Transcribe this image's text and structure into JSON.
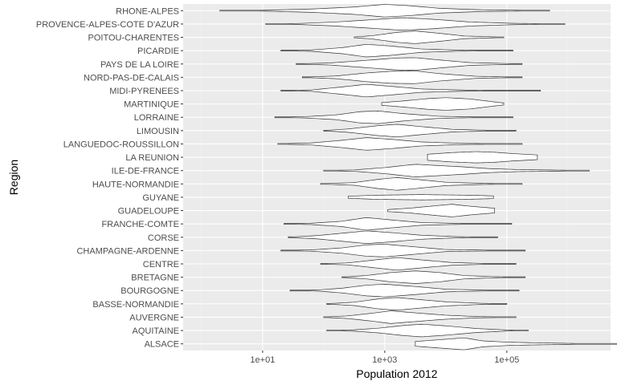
{
  "chart_data": {
    "type": "violin",
    "orientation": "horizontal",
    "xlabel": "Population 2012",
    "ylabel": "Region",
    "x_scale": "log10",
    "xlim": [
      0.5,
      5000000
    ],
    "x_ticks": [
      10,
      1000,
      100000
    ],
    "x_tick_labels": [
      "1e+01",
      "1e+03",
      "1e+05"
    ],
    "grid": true,
    "legend": "none",
    "colors": {
      "panel_bg": "#ebebeb",
      "grid_major": "#ffffff",
      "grid_minor": "#f4f4f4",
      "violin_fill": "#ffffff",
      "violin_stroke": "#333333",
      "axis_text": "#4d4d4d",
      "title_text": "#000000"
    },
    "categories": [
      "ALSACE",
      "AQUITAINE",
      "AUVERGNE",
      "BASSE-NORMANDIE",
      "BOURGOGNE",
      "BRETAGNE",
      "CENTRE",
      "CHAMPAGNE-ARDENNE",
      "CORSE",
      "FRANCHE-COMTE",
      "GUADELOUPE",
      "GUYANE",
      "HAUTE-NORMANDIE",
      "ILE-DE-FRANCE",
      "LA REUNION",
      "LANGUEDOC-ROUSSILLON",
      "LIMOUSIN",
      "LORRAINE",
      "MARTINIQUE",
      "MIDI-PYRENEES",
      "NORD-PAS-DE-CALAIS",
      "PAYS DE LA LOIRE",
      "PICARDIE",
      "POITOU-CHARENTES",
      "PROVENCE-ALPES-COTE D'AZUR",
      "RHONE-ALPES"
    ],
    "series": [
      {
        "min": 3.5,
        "max": 7,
        "prof": [
          [
            3.5,
            0.35
          ],
          [
            4.3,
            0.9
          ],
          [
            4.6,
            0.45
          ],
          [
            5,
            0.25
          ],
          [
            5.5,
            0.15
          ],
          [
            6.2,
            0.05
          ],
          [
            7,
            0.02
          ]
        ]
      },
      {
        "min": 2.05,
        "max": 5.35,
        "prof": [
          [
            2.05,
            0.02
          ],
          [
            2.5,
            0.1
          ],
          [
            2.9,
            0.35
          ],
          [
            3.3,
            0.75
          ],
          [
            3.6,
            0.95
          ],
          [
            4,
            0.7
          ],
          [
            4.5,
            0.3
          ],
          [
            5,
            0.08
          ],
          [
            5.35,
            0.02
          ]
        ]
      },
      {
        "min": 2.0,
        "max": 5.15,
        "prof": [
          [
            2,
            0.02
          ],
          [
            2.4,
            0.2
          ],
          [
            2.8,
            0.6
          ],
          [
            3.1,
            0.95
          ],
          [
            3.5,
            0.65
          ],
          [
            4,
            0.3
          ],
          [
            4.5,
            0.1
          ],
          [
            5.15,
            0.02
          ]
        ]
      },
      {
        "min": 2.05,
        "max": 5.0,
        "prof": [
          [
            2.05,
            0.02
          ],
          [
            2.5,
            0.25
          ],
          [
            2.9,
            0.75
          ],
          [
            3.2,
            0.95
          ],
          [
            3.5,
            0.7
          ],
          [
            4,
            0.3
          ],
          [
            4.6,
            0.08
          ],
          [
            5,
            0.02
          ]
        ]
      },
      {
        "min": 1.45,
        "max": 5.2,
        "prof": [
          [
            1.45,
            0.02
          ],
          [
            1.9,
            0.08
          ],
          [
            2.3,
            0.35
          ],
          [
            2.7,
            0.8
          ],
          [
            3.0,
            0.95
          ],
          [
            3.5,
            0.6
          ],
          [
            4,
            0.2
          ],
          [
            4.7,
            0.05
          ],
          [
            5.2,
            0.02
          ]
        ]
      },
      {
        "min": 2.3,
        "max": 5.3,
        "prof": [
          [
            2.3,
            0.02
          ],
          [
            2.7,
            0.25
          ],
          [
            3.1,
            0.7
          ],
          [
            3.5,
            0.95
          ],
          [
            3.9,
            0.7
          ],
          [
            4.3,
            0.25
          ],
          [
            4.8,
            0.08
          ],
          [
            5.3,
            0.02
          ]
        ]
      },
      {
        "min": 1.95,
        "max": 5.15,
        "prof": [
          [
            1.95,
            0.02
          ],
          [
            2.4,
            0.15
          ],
          [
            2.8,
            0.55
          ],
          [
            3.2,
            0.95
          ],
          [
            3.6,
            0.6
          ],
          [
            4.1,
            0.2
          ],
          [
            4.7,
            0.05
          ],
          [
            5.15,
            0.02
          ]
        ]
      },
      {
        "min": 1.3,
        "max": 5.3,
        "prof": [
          [
            1.3,
            0.02
          ],
          [
            1.8,
            0.1
          ],
          [
            2.3,
            0.4
          ],
          [
            2.7,
            0.85
          ],
          [
            3.0,
            0.95
          ],
          [
            3.5,
            0.55
          ],
          [
            4,
            0.15
          ],
          [
            4.8,
            0.05
          ],
          [
            5.3,
            0.02
          ]
        ]
      },
      {
        "min": 1.42,
        "max": 4.85,
        "prof": [
          [
            1.42,
            0.02
          ],
          [
            1.9,
            0.25
          ],
          [
            2.3,
            0.6
          ],
          [
            2.7,
            0.95
          ],
          [
            3.1,
            0.7
          ],
          [
            3.6,
            0.3
          ],
          [
            4.2,
            0.08
          ],
          [
            4.85,
            0.02
          ]
        ]
      },
      {
        "min": 1.35,
        "max": 5.08,
        "prof": [
          [
            1.35,
            0.02
          ],
          [
            1.8,
            0.1
          ],
          [
            2.3,
            0.4
          ],
          [
            2.7,
            0.95
          ],
          [
            3.1,
            0.6
          ],
          [
            3.6,
            0.2
          ],
          [
            4.3,
            0.05
          ],
          [
            5.08,
            0.02
          ]
        ]
      },
      {
        "min": 3.05,
        "max": 4.8,
        "prof": [
          [
            3.05,
            0.15
          ],
          [
            3.4,
            0.35
          ],
          [
            3.8,
            0.7
          ],
          [
            4.1,
            0.95
          ],
          [
            4.4,
            0.65
          ],
          [
            4.8,
            0.35
          ]
        ]
      },
      {
        "min": 2.4,
        "max": 4.78,
        "prof": [
          [
            2.4,
            0.15
          ],
          [
            2.8,
            0.3
          ],
          [
            3.2,
            0.35
          ],
          [
            3.6,
            0.4
          ],
          [
            4,
            0.35
          ],
          [
            4.4,
            0.3
          ],
          [
            4.78,
            0.2
          ]
        ]
      },
      {
        "min": 1.95,
        "max": 5.25,
        "prof": [
          [
            1.95,
            0.02
          ],
          [
            2.5,
            0.2
          ],
          [
            2.9,
            0.7
          ],
          [
            3.2,
            0.95
          ],
          [
            3.5,
            0.7
          ],
          [
            4,
            0.25
          ],
          [
            4.6,
            0.08
          ],
          [
            5.25,
            0.02
          ]
        ]
      },
      {
        "min": 2.0,
        "max": 6.35,
        "prof": [
          [
            2,
            0.02
          ],
          [
            2.5,
            0.1
          ],
          [
            3,
            0.45
          ],
          [
            3.5,
            0.95
          ],
          [
            3.9,
            0.75
          ],
          [
            4.3,
            0.55
          ],
          [
            4.7,
            0.3
          ],
          [
            5.2,
            0.15
          ],
          [
            6.35,
            0.02
          ]
        ]
      },
      {
        "min": 3.7,
        "max": 5.5,
        "prof": [
          [
            3.7,
            0.45
          ],
          [
            4.1,
            0.7
          ],
          [
            4.5,
            0.85
          ],
          [
            4.8,
            0.75
          ],
          [
            5.1,
            0.55
          ],
          [
            5.5,
            0.35
          ]
        ]
      },
      {
        "min": 1.25,
        "max": 5.25,
        "prof": [
          [
            1.25,
            0.02
          ],
          [
            1.8,
            0.15
          ],
          [
            2.3,
            0.55
          ],
          [
            2.7,
            0.95
          ],
          [
            3.1,
            0.7
          ],
          [
            3.6,
            0.3
          ],
          [
            4.3,
            0.08
          ],
          [
            5.25,
            0.02
          ]
        ]
      },
      {
        "min": 2.0,
        "max": 5.15,
        "prof": [
          [
            2,
            0.02
          ],
          [
            2.4,
            0.25
          ],
          [
            2.9,
            0.75
          ],
          [
            3.2,
            0.95
          ],
          [
            3.6,
            0.6
          ],
          [
            4.1,
            0.2
          ],
          [
            4.7,
            0.05
          ],
          [
            5.15,
            0.02
          ]
        ]
      },
      {
        "min": 1.2,
        "max": 5.1,
        "prof": [
          [
            1.2,
            0.02
          ],
          [
            1.7,
            0.1
          ],
          [
            2.2,
            0.35
          ],
          [
            2.6,
            0.85
          ],
          [
            2.9,
            0.95
          ],
          [
            3.3,
            0.55
          ],
          [
            3.9,
            0.15
          ],
          [
            4.5,
            0.05
          ],
          [
            5.1,
            0.02
          ]
        ]
      },
      {
        "min": 2.95,
        "max": 4.95,
        "prof": [
          [
            2.95,
            0.2
          ],
          [
            3.3,
            0.45
          ],
          [
            3.7,
            0.8
          ],
          [
            4.0,
            0.95
          ],
          [
            4.4,
            0.75
          ],
          [
            4.8,
            0.3
          ],
          [
            4.95,
            0.15
          ]
        ]
      },
      {
        "min": 1.3,
        "max": 5.55,
        "prof": [
          [
            1.3,
            0.02
          ],
          [
            1.8,
            0.1
          ],
          [
            2.3,
            0.55
          ],
          [
            2.7,
            0.95
          ],
          [
            3.1,
            0.65
          ],
          [
            3.6,
            0.25
          ],
          [
            4.3,
            0.08
          ],
          [
            5.55,
            0.02
          ]
        ]
      },
      {
        "min": 1.65,
        "max": 5.25,
        "prof": [
          [
            1.65,
            0.02
          ],
          [
            2.2,
            0.2
          ],
          [
            2.7,
            0.65
          ],
          [
            3.1,
            0.9
          ],
          [
            3.5,
            0.95
          ],
          [
            3.9,
            0.55
          ],
          [
            4.5,
            0.15
          ],
          [
            5.25,
            0.02
          ]
        ]
      },
      {
        "min": 1.55,
        "max": 5.25,
        "prof": [
          [
            1.55,
            0.02
          ],
          [
            2.1,
            0.15
          ],
          [
            2.7,
            0.55
          ],
          [
            3.2,
            0.9
          ],
          [
            3.5,
            0.95
          ],
          [
            3.9,
            0.6
          ],
          [
            4.4,
            0.2
          ],
          [
            5.25,
            0.02
          ]
        ]
      },
      {
        "min": 1.3,
        "max": 5.1,
        "prof": [
          [
            1.3,
            0.02
          ],
          [
            1.8,
            0.1
          ],
          [
            2.3,
            0.45
          ],
          [
            2.7,
            0.95
          ],
          [
            3.1,
            0.7
          ],
          [
            3.6,
            0.25
          ],
          [
            4.2,
            0.08
          ],
          [
            5.1,
            0.02
          ]
        ]
      },
      {
        "min": 2.5,
        "max": 4.95,
        "prof": [
          [
            2.5,
            0.05
          ],
          [
            2.8,
            0.25
          ],
          [
            3.2,
            0.75
          ],
          [
            3.5,
            0.95
          ],
          [
            3.9,
            0.6
          ],
          [
            4.3,
            0.2
          ],
          [
            4.95,
            0.03
          ]
        ]
      },
      {
        "min": 1.05,
        "max": 5.95,
        "prof": [
          [
            1.05,
            0.02
          ],
          [
            1.6,
            0.08
          ],
          [
            2.2,
            0.3
          ],
          [
            2.8,
            0.65
          ],
          [
            3.3,
            0.95
          ],
          [
            3.8,
            0.7
          ],
          [
            4.4,
            0.3
          ],
          [
            5.1,
            0.1
          ],
          [
            5.95,
            0.02
          ]
        ]
      },
      {
        "min": 0.3,
        "max": 5.7,
        "prof": [
          [
            0.3,
            0.02
          ],
          [
            1,
            0.06
          ],
          [
            1.8,
            0.25
          ],
          [
            2.5,
            0.55
          ],
          [
            3,
            0.95
          ],
          [
            3.4,
            0.75
          ],
          [
            3.9,
            0.35
          ],
          [
            4.6,
            0.12
          ],
          [
            5.7,
            0.02
          ]
        ]
      }
    ]
  }
}
